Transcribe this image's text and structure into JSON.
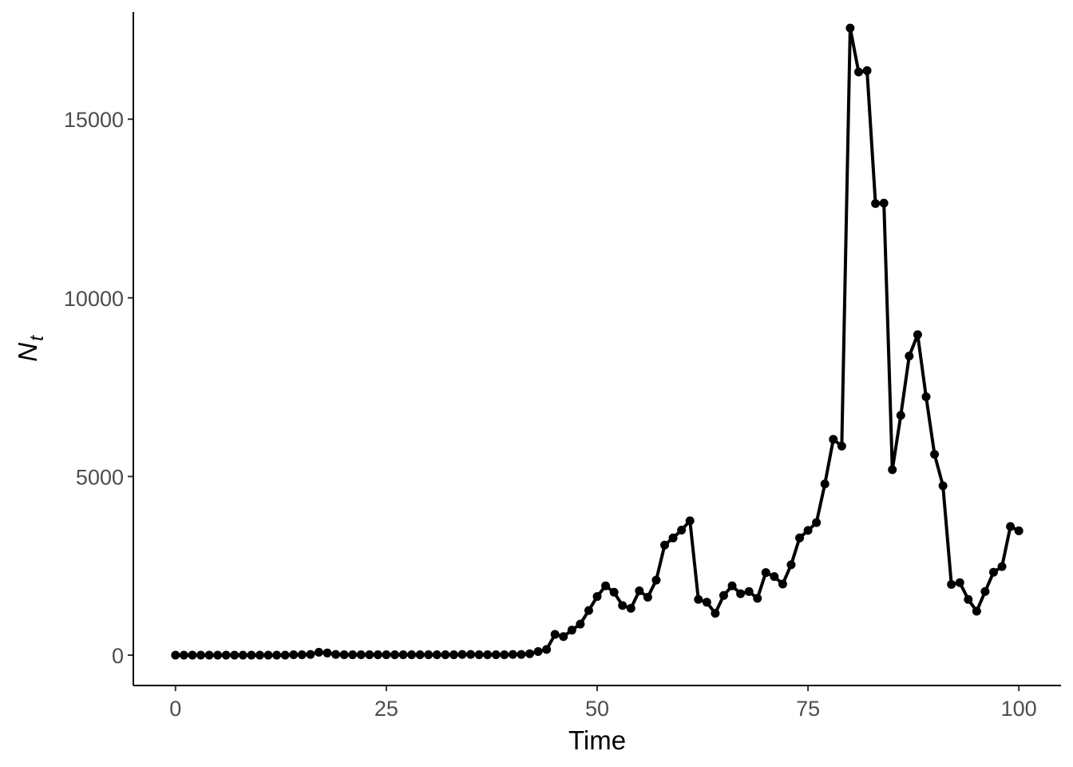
{
  "chart_data": {
    "type": "line",
    "title": "",
    "xlabel": "Time",
    "ylabel": {
      "main": "N",
      "sub": "t"
    },
    "xlim": [
      -5,
      105
    ],
    "ylim": [
      -850,
      18000
    ],
    "x_ticks": [
      0,
      25,
      50,
      75,
      100
    ],
    "y_ticks": [
      0,
      5000,
      10000,
      15000
    ],
    "grid": false,
    "legend": "none",
    "color": "#000000",
    "series": [
      {
        "x": [
          0,
          1,
          2,
          3,
          4,
          5,
          6,
          7,
          8,
          9,
          10,
          11,
          12,
          13,
          14,
          15,
          16,
          17,
          18,
          19,
          20,
          21,
          22,
          23,
          24,
          25,
          26,
          27,
          28,
          29,
          30,
          31,
          32,
          33,
          34,
          35,
          36,
          37,
          38,
          39,
          40,
          41,
          42,
          43,
          44,
          45,
          46,
          47,
          48,
          49,
          50,
          51,
          52,
          53,
          54,
          55,
          56,
          57,
          58,
          59,
          60,
          61,
          62,
          63,
          64,
          65,
          66,
          67,
          68,
          69,
          70,
          71,
          72,
          73,
          74,
          75,
          76,
          77,
          78,
          79,
          80,
          81,
          82,
          83,
          84,
          85,
          86,
          87,
          88,
          89,
          90,
          91,
          92,
          93,
          94,
          95,
          96,
          97,
          98,
          99,
          100
        ],
        "values": [
          0,
          0,
          0,
          0,
          0,
          0,
          0,
          0,
          0,
          0,
          0,
          0,
          0,
          0,
          10,
          10,
          20,
          80,
          60,
          20,
          10,
          10,
          10,
          10,
          10,
          10,
          10,
          10,
          10,
          10,
          10,
          10,
          10,
          10,
          20,
          20,
          10,
          10,
          10,
          10,
          20,
          20,
          40,
          100,
          160,
          580,
          520,
          700,
          870,
          1250,
          1640,
          1940,
          1760,
          1390,
          1310,
          1800,
          1620,
          2100,
          3080,
          3280,
          3500,
          3760,
          1560,
          1480,
          1170,
          1670,
          1940,
          1720,
          1780,
          1590,
          2310,
          2200,
          1990,
          2530,
          3280,
          3490,
          3710,
          4790,
          6040,
          5850,
          17550,
          16320,
          16360,
          12640,
          12650,
          5190,
          6710,
          8370,
          8970,
          7230,
          5620,
          4740,
          1980,
          2030,
          1560,
          1230,
          1780,
          2320,
          2480,
          3600,
          3480
        ]
      }
    ]
  }
}
